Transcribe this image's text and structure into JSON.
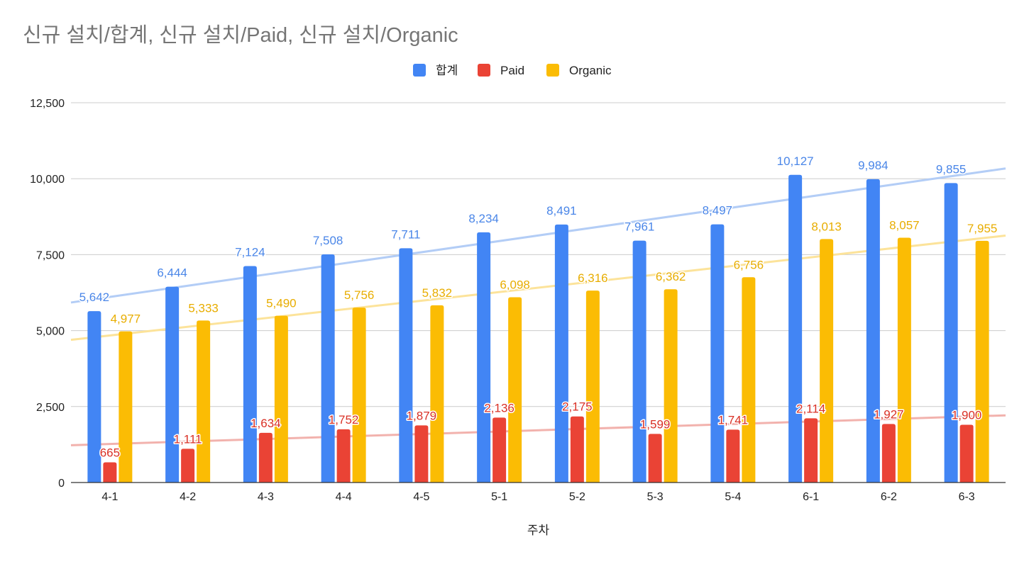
{
  "chart_data": {
    "type": "bar",
    "title": "신규 설치/합계, 신규 설치/Paid, 신규 설치/Organic",
    "xlabel": "주차",
    "ylabel": "",
    "ylim": [
      0,
      12500
    ],
    "yticks": [
      0,
      2500,
      5000,
      7500,
      10000,
      12500
    ],
    "ytick_labels": [
      "0",
      "2,500",
      "5,000",
      "7,500",
      "10,000",
      "12,500"
    ],
    "grid": true,
    "legend_position": "top-center",
    "categories": [
      "4-1",
      "4-2",
      "4-3",
      "4-4",
      "4-5",
      "5-1",
      "5-2",
      "5-3",
      "5-4",
      "6-1",
      "6-2",
      "6-3"
    ],
    "series": [
      {
        "name": "합계",
        "color": "#4285f4",
        "trendline_color": "#b3cdf6",
        "values": [
          5642,
          6444,
          7124,
          7508,
          7711,
          8234,
          8491,
          7961,
          8497,
          10127,
          9984,
          9855
        ],
        "labels": [
          "5,642",
          "6,444",
          "7,124",
          "7,508",
          "7,711",
          "8,234",
          "8,491",
          "7,961",
          "8,497",
          "10,127",
          "9,984",
          "9,855"
        ]
      },
      {
        "name": "Paid",
        "color": "#ea4335",
        "trendline_color": "#f2b2ad",
        "values": [
          665,
          1111,
          1634,
          1752,
          1879,
          2136,
          2175,
          1599,
          1741,
          2114,
          1927,
          1900
        ],
        "labels": [
          "665",
          "1,111",
          "1,634",
          "1,752",
          "1,879",
          "2,136",
          "2,175",
          "1,599",
          "1,741",
          "2,114",
          "1,927",
          "1,900"
        ]
      },
      {
        "name": "Organic",
        "color": "#fbbc04",
        "trendline_color": "#fce39a",
        "values": [
          4977,
          5333,
          5490,
          5756,
          5832,
          6098,
          6316,
          6362,
          6756,
          8013,
          8057,
          7955
        ],
        "labels": [
          "4,977",
          "5,333",
          "5,490",
          "5,756",
          "5,832",
          "6,098",
          "6,316",
          "6,362",
          "6,756",
          "8,013",
          "8,057",
          "7,955"
        ]
      }
    ]
  }
}
